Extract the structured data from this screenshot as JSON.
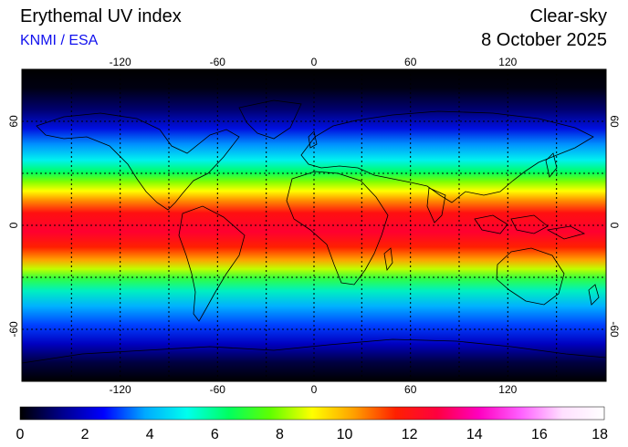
{
  "header": {
    "title": "Erythemal UV index",
    "source": "KNMI / ESA",
    "condition": "Clear-sky",
    "date": "8 October 2025"
  },
  "map": {
    "projection": "equirectangular",
    "lon_range": [
      -180,
      180
    ],
    "lat_range": [
      -90,
      90
    ],
    "grid": true,
    "lon_ticks": [
      "-120",
      "-60",
      "0",
      "60",
      "120"
    ],
    "lat_ticks": [
      "60",
      "0",
      "-60"
    ]
  },
  "colorbar": {
    "min": 0,
    "max": 18,
    "labels": [
      "0",
      "2",
      "4",
      "6",
      "8",
      "10",
      "12",
      "14",
      "16",
      "18"
    ],
    "colors": [
      "#000000",
      "#00008b",
      "#0000ff",
      "#00aaff",
      "#00ffee",
      "#00ff60",
      "#60ff00",
      "#ffff00",
      "#ffa000",
      "#ff2000",
      "#ff0040",
      "#ff00c0",
      "#ff60ff",
      "#ffe0ff",
      "#ffffff"
    ]
  }
}
